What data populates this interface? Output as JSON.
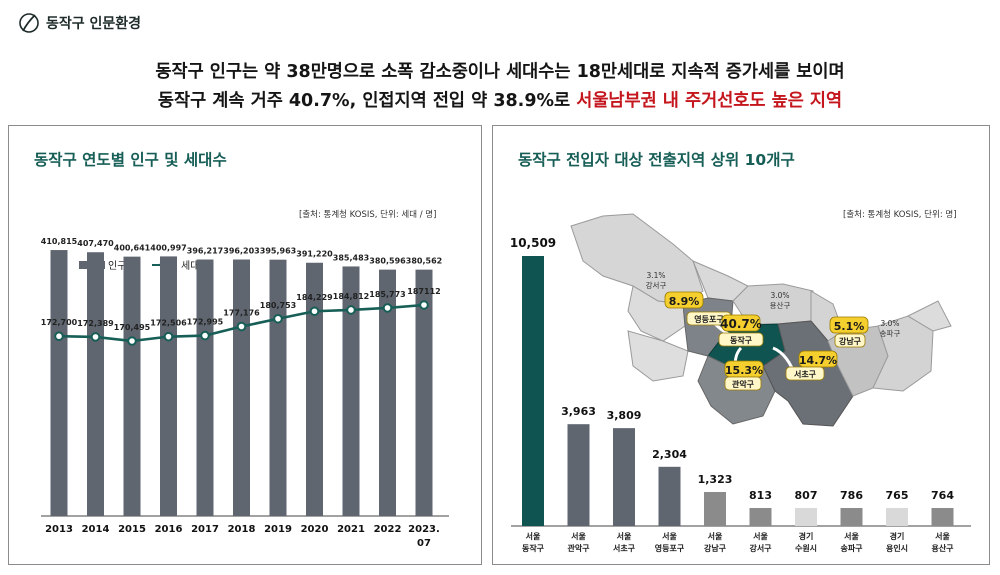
{
  "brand": {
    "name": "동작구 인문환경",
    "icon": "leaf-circle-icon"
  },
  "headline": {
    "line1": "동작구 인구는 약 38만명으로 소폭 감소중이나 세대수는 18만세대로 지속적 증가세를 보이며",
    "line2_prefix": "동작구 계속 거주 40.7%, 인접지역 전입 약 38.9%로 ",
    "line2_highlight": "서울남부권 내 주거선호도 높은 지역",
    "highlight_color": "#c4161c"
  },
  "colors": {
    "accent": "#175e57",
    "bar_dark": "#5f6670",
    "bar_top": "#0f5450",
    "bar_mid": "#8b8b8b",
    "bar_light": "#c9c9c9"
  },
  "left_panel": {
    "title": "동작구 연도별 인구 및 세대수",
    "source": "[출처: 통계청 KOSIS, 단위: 세대 / 명]"
  },
  "right_panel": {
    "title": "동작구 전입자 대상 전출지역 상위 10개구",
    "source": "[출처: 통계청 KOSIS, 단위: 명]",
    "map": {
      "labels": [
        {
          "pct": "3.1%",
          "name": "강서구"
        },
        {
          "pct": "3.0%",
          "name": "용산구"
        },
        {
          "pct": "3.0%",
          "name": "송파구"
        },
        {
          "pct": "8.9%",
          "name": "영등포구"
        },
        {
          "pct": "40.7%",
          "name": "동작구"
        },
        {
          "pct": "5.1%",
          "name": "강남구"
        },
        {
          "pct": "14.7%",
          "name": "서초구"
        },
        {
          "pct": "15.3%",
          "name": "관악구"
        }
      ]
    }
  },
  "chart_data": [
    {
      "type": "bar",
      "categories": [
        "2013",
        "2014",
        "2015",
        "2016",
        "2017",
        "2018",
        "2019",
        "2020",
        "2021",
        "2022",
        "2023.07"
      ],
      "series": [
        {
          "name": "인구수",
          "type": "bar",
          "values": [
            410815,
            407470,
            400641,
            400997,
            396217,
            396203,
            395963,
            391220,
            385483,
            380596,
            380562
          ],
          "labels": [
            "410,815",
            "407,470",
            "400,641",
            "400,997",
            "396,217",
            "396,203",
            "395,963",
            "391,220",
            "385,483",
            "380,596",
            "380,562"
          ]
        },
        {
          "name": "세대수",
          "type": "line",
          "values": [
            172700,
            172389,
            170495,
            172506,
            172995,
            177176,
            180753,
            184229,
            184812,
            185773,
            187112
          ],
          "labels": [
            "172,700",
            "172,389",
            "170,495",
            "172,506",
            "172,995",
            "177,176",
            "180,753",
            "184,229",
            "184,812",
            "185,773",
            "187112"
          ]
        }
      ],
      "legend": "top-left"
    },
    {
      "type": "bar",
      "categories": [
        "서울 동작구",
        "서울 관악구",
        "서울 서초구",
        "서울 영등포구",
        "서울 강남구",
        "서울 강서구",
        "경기 수원시",
        "서울 송파구",
        "경기 용인시",
        "서울 용산구"
      ],
      "category_lines": [
        [
          "서울",
          "동작구"
        ],
        [
          "서울",
          "관악구"
        ],
        [
          "서울",
          "서초구"
        ],
        [
          "서울",
          "영등포구"
        ],
        [
          "서울",
          "강남구"
        ],
        [
          "서울",
          "강서구"
        ],
        [
          "경기",
          "수원시"
        ],
        [
          "서울",
          "송파구"
        ],
        [
          "경기",
          "용인시"
        ],
        [
          "서울",
          "용산구"
        ]
      ],
      "values": [
        10509,
        3963,
        3809,
        2304,
        1323,
        813,
        807,
        786,
        765,
        764
      ],
      "labels": [
        "10,509",
        "3,963",
        "3,809",
        "2,304",
        "1,323",
        "813",
        "807",
        "786",
        "765",
        "764"
      ],
      "bar_colors": [
        "#0f5450",
        "#5f6670",
        "#5f6670",
        "#5f6670",
        "#8b8b8b",
        "#8b8b8b",
        "#d9d9d9",
        "#8b8b8b",
        "#d9d9d9",
        "#8b8b8b"
      ]
    }
  ]
}
